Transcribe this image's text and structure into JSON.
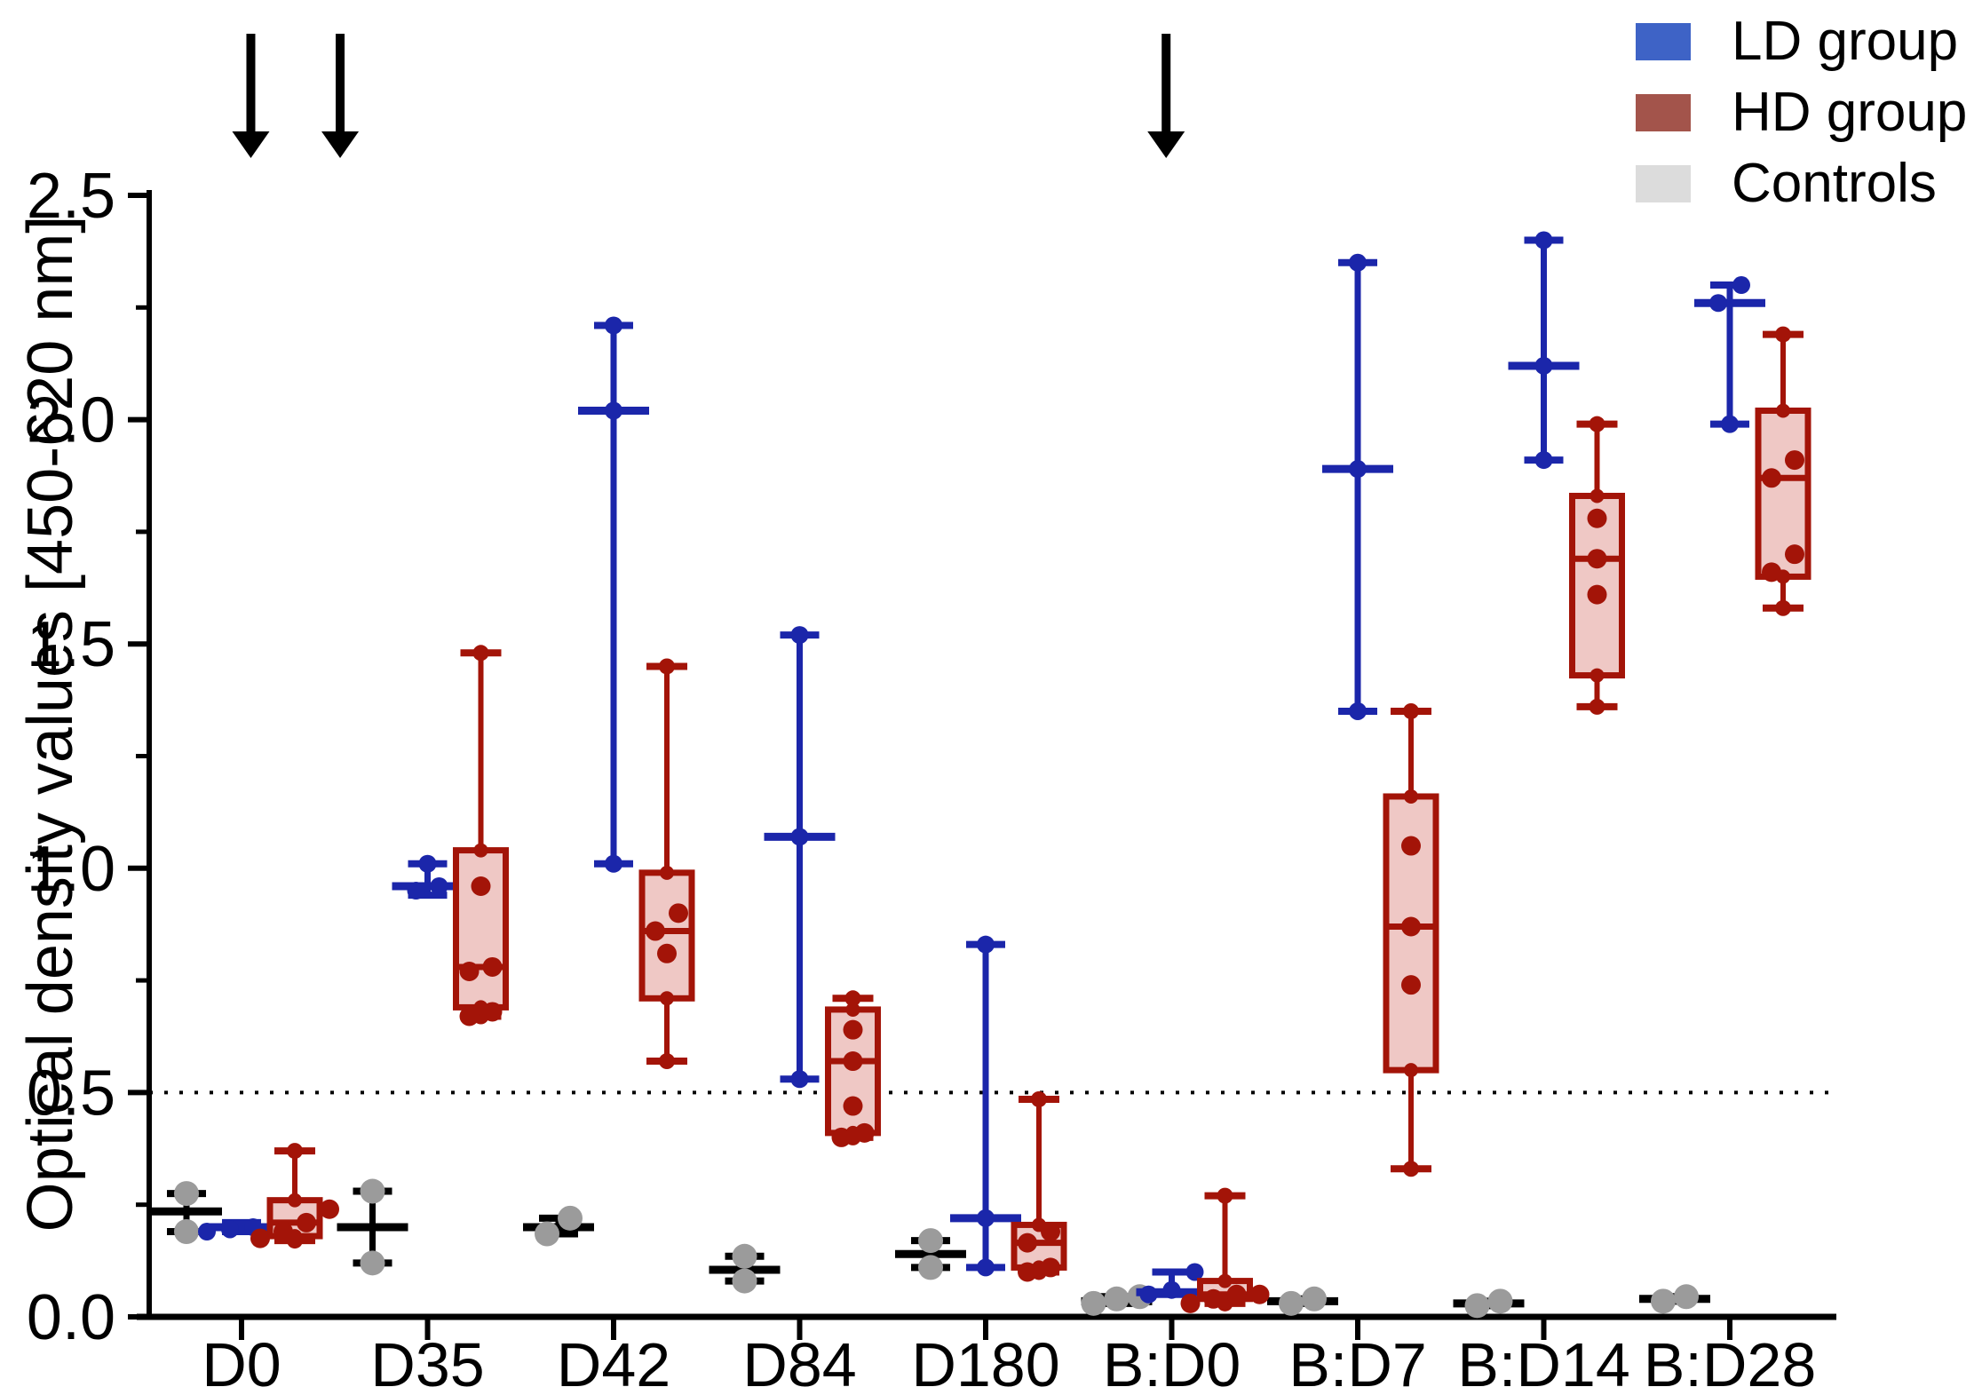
{
  "legend": {
    "items": [
      {
        "label": "LD group",
        "color": "#3e63c6"
      },
      {
        "label": "HD group",
        "color": "#a3544b"
      },
      {
        "label": "Controls",
        "color": "#dcdcdc"
      }
    ]
  },
  "chart_data": {
    "type": "boxplot",
    "title": "",
    "xlabel": "",
    "ylabel": "Optical density values [450-620 nm]",
    "ylim": [
      0,
      2.5
    ],
    "y_major_ticks": [
      0,
      0.5,
      1.0,
      1.5,
      2.0,
      2.5
    ],
    "y_tick_labels": [
      "0.0",
      "0.5",
      "1.0",
      "1.5",
      "2.0",
      "2.5"
    ],
    "y_minor_ticks": [
      0.25,
      0.75,
      1.25,
      1.75,
      2.25
    ],
    "grid": false,
    "legend_position": "top-right",
    "reference_line_y": 0.5,
    "categories": [
      "D0",
      "D35",
      "D42",
      "D84",
      "D180",
      "B:D0",
      "B:D7",
      "B:D14",
      "B:D28"
    ],
    "annotations": {
      "arrows": {
        "description": "black downward arrows above the plot",
        "x_category_positions": [
          0.05,
          0.53,
          4.97
        ]
      }
    },
    "series": [
      {
        "name": "Controls",
        "style": "min-med-max",
        "color": "#000000",
        "dot_color": "#9b9b9b",
        "data": [
          {
            "min": 0.19,
            "med": 0.235,
            "max": 0.275,
            "points": [
              0.19,
              0.275
            ]
          },
          {
            "min": 0.12,
            "med": 0.2,
            "max": 0.28,
            "points": [
              0.12,
              0.28
            ]
          },
          {
            "min": 0.185,
            "med": 0.2,
            "max": 0.22,
            "points": [
              0.185,
              0.22
            ]
          },
          {
            "min": 0.08,
            "med": 0.105,
            "max": 0.135,
            "points": [
              0.08,
              0.135
            ]
          },
          {
            "min": 0.11,
            "med": 0.14,
            "max": 0.17,
            "points": [
              0.11,
              0.17
            ]
          },
          {
            "min": 0.03,
            "med": 0.035,
            "max": 0.045,
            "points": [
              0.03,
              0.04,
              0.045
            ]
          },
          {
            "min": 0.03,
            "med": 0.035,
            "max": 0.04,
            "points": [
              0.03,
              0.04
            ]
          },
          {
            "min": 0.025,
            "med": 0.03,
            "max": 0.035,
            "points": [
              0.025,
              0.035
            ]
          },
          {
            "min": 0.035,
            "med": 0.04,
            "max": 0.045,
            "points": [
              0.035,
              0.045
            ]
          }
        ]
      },
      {
        "name": "LD group",
        "style": "min-med-max",
        "color": "#1b26aa",
        "dot_color": "#1b26aa",
        "data": [
          {
            "min": 0.19,
            "med": 0.2,
            "max": 0.21,
            "points": [
              0.19,
              0.195,
              0.2,
              0.21
            ]
          },
          {
            "min": 0.94,
            "med": 0.96,
            "max": 1.01,
            "points": [
              0.95,
              0.96,
              1.01
            ]
          },
          {
            "min": 1.01,
            "med": 2.02,
            "max": 2.21,
            "points": [
              1.01,
              2.02,
              2.21
            ]
          },
          {
            "min": 0.53,
            "med": 1.07,
            "max": 1.52,
            "points": [
              0.53,
              1.07,
              1.52
            ]
          },
          {
            "min": 0.11,
            "med": 0.22,
            "max": 0.83,
            "points": [
              0.11,
              0.22,
              0.83
            ]
          },
          {
            "min": 0.05,
            "med": 0.055,
            "max": 0.1,
            "points": [
              0.05,
              0.06,
              0.1
            ]
          },
          {
            "min": 1.35,
            "med": 1.89,
            "max": 2.35,
            "points": [
              1.35,
              1.89,
              2.35
            ]
          },
          {
            "min": 1.91,
            "med": 2.12,
            "max": 2.4,
            "points": [
              1.91,
              2.12,
              2.4
            ]
          },
          {
            "min": 1.99,
            "med": 2.26,
            "max": 2.3,
            "points": [
              1.99,
              2.26,
              2.3
            ]
          }
        ]
      },
      {
        "name": "HD group",
        "style": "box",
        "color": "#a31408",
        "fill": "#efc8c5",
        "dot_color": "#a31408",
        "data": [
          {
            "min": 0.17,
            "q1": 0.18,
            "med": 0.21,
            "q3": 0.26,
            "max": 0.37,
            "points": [
              0.24,
              0.21,
              0.19,
              0.175
            ]
          },
          {
            "min": 0.67,
            "q1": 0.69,
            "med": 0.78,
            "q3": 1.04,
            "max": 1.48,
            "points": [
              0.96,
              0.78,
              0.77,
              0.68,
              0.67
            ]
          },
          {
            "min": 0.57,
            "q1": 0.71,
            "med": 0.86,
            "q3": 0.99,
            "max": 1.45,
            "points": [
              0.9,
              0.86,
              0.81
            ]
          },
          {
            "min": 0.4,
            "q1": 0.41,
            "med": 0.57,
            "q3": 0.685,
            "max": 0.71,
            "points": [
              0.64,
              0.57,
              0.47,
              0.4,
              0.41
            ]
          },
          {
            "min": 0.1,
            "q1": 0.11,
            "med": 0.165,
            "q3": 0.205,
            "max": 0.485,
            "points": [
              0.19,
              0.165,
              0.11,
              0.1
            ]
          },
          {
            "min": 0.03,
            "q1": 0.04,
            "med": 0.05,
            "q3": 0.08,
            "max": 0.27,
            "points": [
              0.05,
              0.04,
              0.05,
              0.03
            ]
          },
          {
            "min": 0.33,
            "q1": 0.55,
            "med": 0.87,
            "q3": 1.16,
            "max": 1.35,
            "points": [
              1.05,
              0.87,
              0.74
            ]
          },
          {
            "min": 1.36,
            "q1": 1.43,
            "med": 1.69,
            "q3": 1.83,
            "max": 1.99,
            "points": [
              1.78,
              1.69,
              1.61
            ]
          },
          {
            "min": 1.58,
            "q1": 1.65,
            "med": 1.87,
            "q3": 2.02,
            "max": 2.19,
            "points": [
              1.91,
              1.87,
              1.7,
              1.66
            ]
          }
        ]
      }
    ]
  }
}
